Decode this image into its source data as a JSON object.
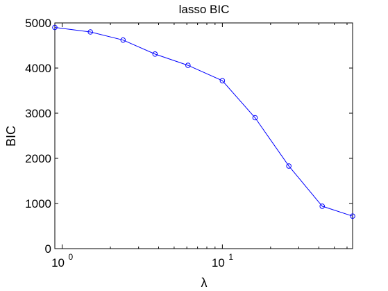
{
  "chart_data": {
    "type": "line",
    "title": "lasso BIC",
    "xlabel": "λ",
    "ylabel": "BIC",
    "xscale": "log",
    "xlim": [
      0.9,
      65
    ],
    "ylim": [
      0,
      5000
    ],
    "grid": false,
    "legend": "none",
    "line_color": "#0000ff",
    "marker": "circle",
    "yticks": [
      0,
      1000,
      2000,
      3000,
      4000,
      5000
    ],
    "xticks": [
      {
        "value": 1,
        "base": "10",
        "exp": "0"
      },
      {
        "value": 10,
        "base": "10",
        "exp": "1"
      }
    ],
    "series": [
      {
        "x": [
          0.9,
          1.5,
          2.4,
          3.8,
          6.1,
          10.0,
          16.0,
          26.0,
          42.0,
          65.0
        ],
        "y": [
          4900,
          4800,
          4620,
          4310,
          4060,
          3720,
          2900,
          1830,
          940,
          720
        ]
      }
    ]
  }
}
